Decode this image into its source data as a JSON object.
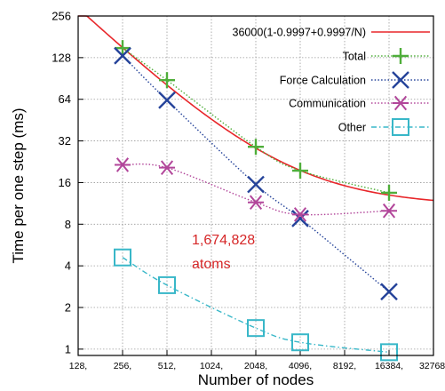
{
  "chart_data": {
    "type": "line",
    "x_scale": "log2",
    "y_scale": "log2",
    "xlabel": "Number of nodes",
    "ylabel": "Time per one step (ms)",
    "xlim": [
      128,
      32768
    ],
    "ylim": [
      0.9,
      256
    ],
    "x_ticks": [
      128,
      256,
      512,
      1024,
      2048,
      4096,
      8192,
      16384,
      32768
    ],
    "x_tick_labels": [
      "128,",
      "256,",
      "512,",
      "1024,",
      "2048,",
      "4096,",
      "8192,",
      "16384,",
      "32768,"
    ],
    "y_ticks": [
      1,
      2,
      4,
      8,
      16,
      32,
      64,
      128,
      256
    ],
    "y_tick_labels": [
      "1",
      "2",
      "4",
      "8",
      "16",
      "32",
      "64",
      "128",
      "256"
    ],
    "grid": true,
    "legend_position": "top-right",
    "annotation": {
      "lines": [
        "1,674,828",
        "atoms"
      ],
      "color": "#d62728"
    },
    "fit_curve": {
      "name": "36000(1-0.9997+0.9997/N)",
      "color": "#e8262a",
      "style": "solid",
      "a": 36000,
      "p": 0.9997
    },
    "series": [
      {
        "name": "Total",
        "color": "#4fae3a",
        "marker": "plus",
        "style": "dotted",
        "x": [
          256,
          512,
          2048,
          4096,
          16384
        ],
        "y": [
          150,
          88,
          29,
          19.5,
          13.5
        ]
      },
      {
        "name": "Force Calculation",
        "color": "#25439a",
        "marker": "x",
        "style": "dotted",
        "x": [
          256,
          512,
          2048,
          4096,
          16384
        ],
        "y": [
          132,
          63,
          15.5,
          8.8,
          2.6
        ]
      },
      {
        "name": "Communication",
        "color": "#b2469a",
        "marker": "star",
        "style": "dotted",
        "x": [
          256,
          512,
          2048,
          4096,
          16384
        ],
        "y": [
          21.5,
          20.5,
          11.5,
          9.4,
          10
        ]
      },
      {
        "name": "Other",
        "color": "#38b7c8",
        "marker": "square",
        "style": "dashdot",
        "x": [
          256,
          512,
          2048,
          4096,
          16384
        ],
        "y": [
          4.6,
          2.9,
          1.42,
          1.12,
          0.95
        ]
      }
    ]
  }
}
